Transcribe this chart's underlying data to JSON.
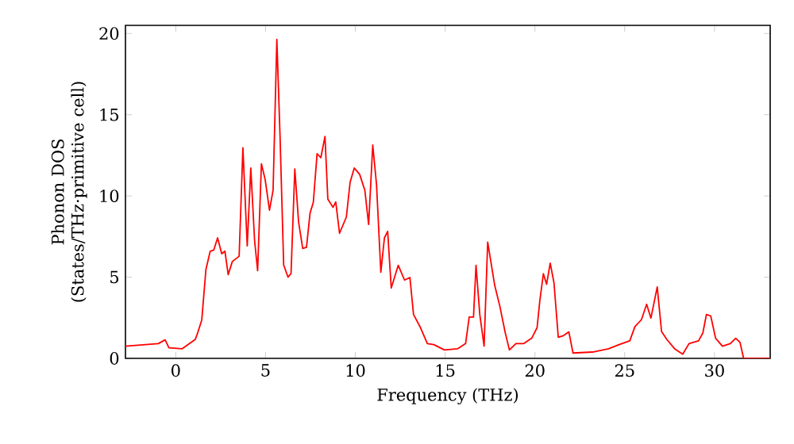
{
  "chart_data": {
    "type": "line",
    "xlabel": "Frequency (THz)",
    "ylabel": "Phonon DOS (States/THz·primitive cell)",
    "xlim": [
      -2.8,
      33.1
    ],
    "ylim": [
      0,
      20.5
    ],
    "xticks": [
      0,
      5,
      10,
      15,
      20,
      25,
      30
    ],
    "yticks": [
      0,
      5,
      10,
      15,
      20
    ],
    "marker": "none",
    "line_style": "solid",
    "series": [
      {
        "color": "#ff0000",
        "x": [
          -2.8,
          -0.97,
          -0.59,
          -0.38,
          0.35,
          1.09,
          1.24,
          1.45,
          1.68,
          1.92,
          2.12,
          2.33,
          2.56,
          2.74,
          2.92,
          3.15,
          3.53,
          3.74,
          3.98,
          4.18,
          4.39,
          4.56,
          4.77,
          4.98,
          5.22,
          5.42,
          5.63,
          5.81,
          6.01,
          6.25,
          6.42,
          6.63,
          6.84,
          7.07,
          7.28,
          7.48,
          7.66,
          7.87,
          8.08,
          8.31,
          8.47,
          8.76,
          8.91,
          9.12,
          9.5,
          9.71,
          9.94,
          10.24,
          10.53,
          10.74,
          10.97,
          11.18,
          11.42,
          11.62,
          11.8,
          12.0,
          12.39,
          12.74,
          13.04,
          13.24,
          13.63,
          14.01,
          14.37,
          14.96,
          15.69,
          16.14,
          16.34,
          16.58,
          16.72,
          16.93,
          17.17,
          17.37,
          17.76,
          18.05,
          18.35,
          18.58,
          18.94,
          19.38,
          19.82,
          20.12,
          20.27,
          20.47,
          20.65,
          20.85,
          21.06,
          21.3,
          21.59,
          21.89,
          22.12,
          23.21,
          24.1,
          24.69,
          25.28,
          25.57,
          25.93,
          26.22,
          26.46,
          26.81,
          27.05,
          27.34,
          27.78,
          28.23,
          28.58,
          29.11,
          29.35,
          29.55,
          29.79,
          30.06,
          30.44,
          30.88,
          31.18,
          31.42,
          31.62,
          33.1
        ],
        "values": [
          0.75,
          0.91,
          1.14,
          0.65,
          0.59,
          1.17,
          1.63,
          2.37,
          5.47,
          6.6,
          6.67,
          7.42,
          6.44,
          6.6,
          5.15,
          5.96,
          6.29,
          12.96,
          6.92,
          11.72,
          7.26,
          5.4,
          11.98,
          11.0,
          9.12,
          10.35,
          19.64,
          13.6,
          5.75,
          5.0,
          5.23,
          11.66,
          8.4,
          6.77,
          6.84,
          8.95,
          9.6,
          12.6,
          12.36,
          13.66,
          9.8,
          9.3,
          9.63,
          7.7,
          8.7,
          10.85,
          11.72,
          11.33,
          10.35,
          8.24,
          13.13,
          10.7,
          5.3,
          7.42,
          7.82,
          4.33,
          5.73,
          4.82,
          4.98,
          2.7,
          1.89,
          0.91,
          0.85,
          0.52,
          0.59,
          0.91,
          2.54,
          2.54,
          5.73,
          2.7,
          0.75,
          7.16,
          4.5,
          3.19,
          1.56,
          0.52,
          0.91,
          0.91,
          1.24,
          1.89,
          3.52,
          5.21,
          4.56,
          5.86,
          4.66,
          1.3,
          1.4,
          1.63,
          0.33,
          0.39,
          0.59,
          0.85,
          1.08,
          1.96,
          2.38,
          3.33,
          2.48,
          4.4,
          1.66,
          1.17,
          0.59,
          0.26,
          0.91,
          1.08,
          1.56,
          2.7,
          2.61,
          1.24,
          0.75,
          0.91,
          1.24,
          0.98,
          0.0,
          0.0
        ]
      }
    ]
  }
}
